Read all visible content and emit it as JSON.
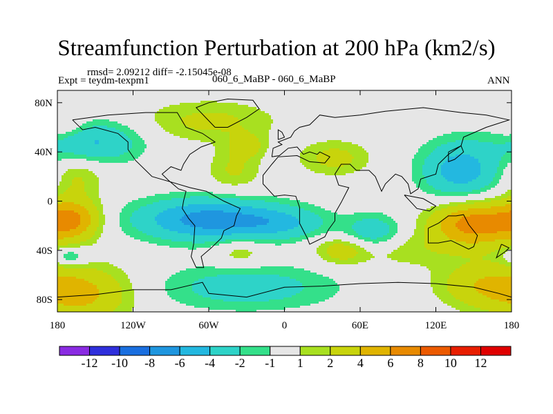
{
  "chart_data": {
    "type": "heatmap",
    "title": "Streamfunction Perturbation at 200 hPa (km2/s)",
    "stats_text": "rmsd= 2.09212 diff= -2.15045e-08",
    "left_label": "Expt = teydm-texpm1",
    "center_label": "060_6_MaBP - 060_6_MaBP",
    "right_label": "ANN",
    "x_range": [
      -180,
      180
    ],
    "y_range": [
      -90,
      90
    ],
    "x_ticks": [
      {
        "value": -180,
        "label": "180"
      },
      {
        "value": -120,
        "label": "120W"
      },
      {
        "value": -60,
        "label": "60W"
      },
      {
        "value": 0,
        "label": "0"
      },
      {
        "value": 60,
        "label": "60E"
      },
      {
        "value": 120,
        "label": "120E"
      },
      {
        "value": 180,
        "label": "180"
      }
    ],
    "y_ticks": [
      {
        "value": 80,
        "label": "80N"
      },
      {
        "value": 40,
        "label": "40N"
      },
      {
        "value": 0,
        "label": "0"
      },
      {
        "value": -40,
        "label": "40S"
      },
      {
        "value": -80,
        "label": "80S"
      }
    ],
    "levels": [
      -12,
      -10,
      -8,
      -6,
      -4,
      -2,
      -1,
      1,
      2,
      4,
      6,
      8,
      10,
      12
    ],
    "colorbar_labels": [
      "-12",
      "-10",
      "-8",
      "-6",
      "-4",
      "-2",
      "-1",
      "1",
      "2",
      "4",
      "6",
      "8",
      "10",
      "12"
    ],
    "colors": [
      "#8a2be2",
      "#2f2fdc",
      "#1a6fe0",
      "#1f96df",
      "#23b8e0",
      "#2ed3c8",
      "#34e08a",
      "#e6e6e6",
      "#a8e020",
      "#c8d40c",
      "#e0b400",
      "#e88a00",
      "#ec5a00",
      "#e81e00",
      "#e00000"
    ],
    "anomalies": [
      {
        "lon": -150,
        "lat": 48,
        "amp": -4.2,
        "sx": 26,
        "sy": 12
      },
      {
        "lon": -165,
        "lat": 20,
        "amp": 2.3,
        "sx": 15,
        "sy": 12
      },
      {
        "lon": -175,
        "lat": 62,
        "amp": 2.0,
        "sx": 12,
        "sy": 8
      },
      {
        "lon": -60,
        "lat": 65,
        "amp": 2.4,
        "sx": 38,
        "sy": 12
      },
      {
        "lon": -40,
        "lat": 25,
        "amp": 2.2,
        "sx": 15,
        "sy": 12
      },
      {
        "lon": -30,
        "lat": 45,
        "amp": 2.5,
        "sx": 10,
        "sy": 7
      },
      {
        "lon": 40,
        "lat": 35,
        "amp": 2.6,
        "sx": 20,
        "sy": 10
      },
      {
        "lon": 140,
        "lat": 25,
        "amp": -5.2,
        "sx": 22,
        "sy": 17
      },
      {
        "lon": -168,
        "lat": -15,
        "amp": 5.8,
        "sx": 16,
        "sy": 12
      },
      {
        "lon": -60,
        "lat": -15,
        "amp": -7.0,
        "sx": 40,
        "sy": 12
      },
      {
        "lon": 0,
        "lat": -18,
        "amp": -3.0,
        "sx": 25,
        "sy": 9
      },
      {
        "lon": 70,
        "lat": -25,
        "amp": -3.5,
        "sx": 16,
        "sy": 10
      },
      {
        "lon": 150,
        "lat": -18,
        "amp": 7.2,
        "sx": 24,
        "sy": 13
      },
      {
        "lon": 95,
        "lat": -40,
        "amp": 1.6,
        "sx": 35,
        "sy": 10
      },
      {
        "lon": -35,
        "lat": -42,
        "amp": 2.1,
        "sx": 14,
        "sy": 8
      },
      {
        "lon": 45,
        "lat": -40,
        "amp": 2.8,
        "sx": 14,
        "sy": 8
      },
      {
        "lon": -160,
        "lat": -75,
        "amp": 4.5,
        "sx": 28,
        "sy": 16
      },
      {
        "lon": -30,
        "lat": -70,
        "amp": -3.0,
        "sx": 50,
        "sy": 13
      },
      {
        "lon": 155,
        "lat": -68,
        "amp": 3.2,
        "sx": 25,
        "sy": 13
      },
      {
        "lon": -170,
        "lat": -45,
        "amp": -3.0,
        "sx": 10,
        "sy": 5
      }
    ],
    "coastlines": [
      [
        [
          -168,
          66
        ],
        [
          -140,
          70
        ],
        [
          -110,
          72
        ],
        [
          -85,
          72
        ],
        [
          -78,
          60
        ],
        [
          -65,
          55
        ],
        [
          -55,
          48
        ],
        [
          -66,
          44
        ],
        [
          -75,
          38
        ],
        [
          -80,
          30
        ],
        [
          -82,
          25
        ],
        [
          -90,
          28
        ],
        [
          -97,
          22
        ],
        [
          -92,
          17
        ],
        [
          -84,
          10
        ],
        [
          -78,
          8
        ],
        [
          -80,
          0
        ],
        [
          -81,
          -6
        ],
        [
          -76,
          -14
        ],
        [
          -71,
          -20
        ],
        [
          -72,
          -35
        ],
        [
          -74,
          -45
        ],
        [
          -70,
          -54
        ],
        [
          -64,
          -54
        ],
        [
          -66,
          -45
        ],
        [
          -58,
          -38
        ],
        [
          -50,
          -30
        ],
        [
          -48,
          -24
        ],
        [
          -40,
          -20
        ],
        [
          -38,
          -12
        ],
        [
          -35,
          -6
        ],
        [
          -48,
          0
        ],
        [
          -62,
          8
        ],
        [
          -75,
          11
        ],
        [
          -88,
          15
        ],
        [
          -105,
          20
        ],
        [
          -110,
          25
        ],
        [
          -118,
          33
        ],
        [
          -124,
          42
        ],
        [
          -124,
          48
        ],
        [
          -132,
          55
        ],
        [
          -150,
          60
        ],
        [
          -160,
          58
        ],
        [
          -168,
          66
        ]
      ],
      [
        [
          -55,
          60
        ],
        [
          -45,
          60
        ],
        [
          -30,
          68
        ],
        [
          -20,
          75
        ],
        [
          -25,
          82
        ],
        [
          -45,
          83
        ],
        [
          -60,
          80
        ],
        [
          -70,
          76
        ],
        [
          -55,
          60
        ]
      ],
      [
        [
          -10,
          36
        ],
        [
          -9,
          43
        ],
        [
          -2,
          46
        ],
        [
          -5,
          48
        ],
        [
          5,
          52
        ],
        [
          8,
          57
        ],
        [
          12,
          60
        ],
        [
          20,
          62
        ],
        [
          28,
          70
        ],
        [
          40,
          68
        ],
        [
          60,
          70
        ],
        [
          80,
          73
        ],
        [
          110,
          76
        ],
        [
          140,
          72
        ],
        [
          160,
          70
        ],
        [
          178,
          66
        ],
        [
          160,
          60
        ],
        [
          142,
          52
        ],
        [
          140,
          45
        ],
        [
          130,
          38
        ],
        [
          122,
          30
        ],
        [
          120,
          22
        ],
        [
          108,
          18
        ],
        [
          106,
          10
        ],
        [
          100,
          6
        ],
        [
          98,
          14
        ],
        [
          93,
          20
        ],
        [
          88,
          22
        ],
        [
          80,
          14
        ],
        [
          77,
          8
        ],
        [
          72,
          20
        ],
        [
          67,
          25
        ],
        [
          57,
          25
        ],
        [
          52,
          30
        ],
        [
          45,
          30
        ],
        [
          40,
          22
        ],
        [
          43,
          13
        ],
        [
          51,
          11
        ],
        [
          45,
          -1
        ],
        [
          40,
          -10
        ],
        [
          40,
          -16
        ],
        [
          35,
          -23
        ],
        [
          32,
          -29
        ],
        [
          20,
          -35
        ],
        [
          18,
          -30
        ],
        [
          12,
          -18
        ],
        [
          12,
          -5
        ],
        [
          9,
          4
        ],
        [
          0,
          5
        ],
        [
          -8,
          4
        ],
        [
          -17,
          14
        ],
        [
          -17,
          21
        ],
        [
          -10,
          30
        ],
        [
          -5,
          36
        ],
        [
          10,
          37
        ],
        [
          20,
          32
        ],
        [
          32,
          31
        ],
        [
          36,
          36
        ],
        [
          28,
          40
        ],
        [
          26,
          38
        ],
        [
          20,
          40
        ],
        [
          15,
          38
        ],
        [
          10,
          44
        ],
        [
          3,
          43
        ],
        [
          -4,
          37
        ],
        [
          -10,
          36
        ]
      ],
      [
        [
          -5,
          50
        ],
        [
          0,
          52
        ],
        [
          -2,
          56
        ],
        [
          -5,
          58
        ],
        [
          -5,
          50
        ]
      ],
      [
        [
          95,
          5
        ],
        [
          105,
          -6
        ],
        [
          115,
          -8
        ],
        [
          120,
          -4
        ],
        [
          110,
          2
        ],
        [
          100,
          4
        ],
        [
          95,
          5
        ]
      ],
      [
        [
          130,
          40
        ],
        [
          140,
          45
        ],
        [
          142,
          40
        ],
        [
          135,
          34
        ],
        [
          130,
          32
        ],
        [
          130,
          40
        ]
      ],
      [
        [
          114,
          -22
        ],
        [
          114,
          -34
        ],
        [
          122,
          -34
        ],
        [
          132,
          -32
        ],
        [
          138,
          -35
        ],
        [
          146,
          -39
        ],
        [
          150,
          -37
        ],
        [
          153,
          -28
        ],
        [
          146,
          -19
        ],
        [
          142,
          -11
        ],
        [
          136,
          -12
        ],
        [
          130,
          -12
        ],
        [
          122,
          -18
        ],
        [
          114,
          -22
        ]
      ],
      [
        [
          172,
          -35
        ],
        [
          178,
          -38
        ],
        [
          175,
          -41
        ],
        [
          168,
          -46
        ],
        [
          172,
          -35
        ]
      ],
      [
        [
          -180,
          -78
        ],
        [
          -150,
          -76
        ],
        [
          -120,
          -72
        ],
        [
          -90,
          -72
        ],
        [
          -65,
          -66
        ],
        [
          -60,
          -75
        ],
        [
          -30,
          -78
        ],
        [
          0,
          -70
        ],
        [
          30,
          -69
        ],
        [
          60,
          -67
        ],
        [
          90,
          -66
        ],
        [
          120,
          -67
        ],
        [
          150,
          -70
        ],
        [
          170,
          -75
        ],
        [
          180,
          -78
        ]
      ]
    ]
  }
}
